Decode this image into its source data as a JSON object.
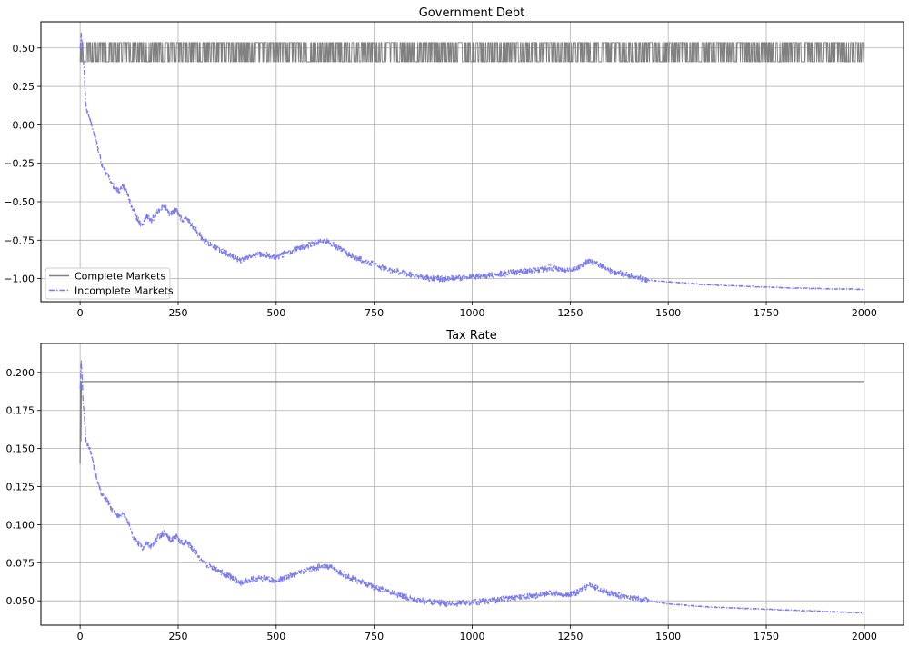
{
  "figure": {
    "panels": [
      {
        "title": "Government Debt"
      },
      {
        "title": "Tax Rate"
      }
    ]
  },
  "chart_data": [
    {
      "type": "line",
      "title": "Government Debt",
      "xlabel": "",
      "ylabel": "",
      "xlim": [
        -100,
        2100
      ],
      "ylim": [
        -1.15,
        0.67
      ],
      "xticks": [
        0,
        250,
        500,
        750,
        1000,
        1250,
        1500,
        1750,
        2000
      ],
      "yticks": [
        -1.0,
        -0.75,
        -0.5,
        -0.25,
        0.0,
        0.25,
        0.5
      ],
      "ytick_labels": [
        "−1.00",
        "−0.75",
        "−0.50",
        "−0.25",
        "0.00",
        "0.25",
        "0.50"
      ],
      "grid": true,
      "legend": "lower-left",
      "series": [
        {
          "name": "Complete Markets",
          "color": "#808080",
          "style": "solid",
          "pattern": "switching",
          "x_range": [
            0,
            2000
          ],
          "levels": [
            0.41,
            0.535
          ],
          "x": [
            0,
            1,
            2,
            3
          ],
          "y": [
            0.41,
            0.535,
            0.44,
            0.5
          ]
        },
        {
          "name": "Incomplete Markets",
          "color": "#7b7bf0",
          "style": "dashdot",
          "x": [
            0,
            3,
            8,
            15,
            25,
            35,
            45,
            55,
            65,
            75,
            90,
            100,
            110,
            125,
            130,
            140,
            150,
            160,
            170,
            180,
            190,
            200,
            215,
            230,
            245,
            260,
            270,
            285,
            300,
            320,
            350,
            380,
            410,
            440,
            470,
            500,
            530,
            560,
            590,
            620,
            640,
            660,
            690,
            720,
            760,
            800,
            850,
            900,
            950,
            1000,
            1050,
            1100,
            1150,
            1200,
            1250,
            1270,
            1300,
            1350,
            1400,
            1450,
            1500,
            1600,
            1700,
            1800,
            1900,
            2000
          ],
          "y": [
            0.5,
            0.58,
            0.45,
            0.12,
            0.03,
            -0.05,
            -0.15,
            -0.25,
            -0.3,
            -0.35,
            -0.42,
            -0.43,
            -0.4,
            -0.48,
            -0.52,
            -0.58,
            -0.63,
            -0.65,
            -0.6,
            -0.62,
            -0.6,
            -0.55,
            -0.53,
            -0.58,
            -0.55,
            -0.62,
            -0.6,
            -0.65,
            -0.7,
            -0.76,
            -0.8,
            -0.85,
            -0.88,
            -0.85,
            -0.84,
            -0.86,
            -0.83,
            -0.8,
            -0.78,
            -0.75,
            -0.77,
            -0.8,
            -0.85,
            -0.88,
            -0.92,
            -0.95,
            -0.98,
            -1.0,
            -1.0,
            -0.99,
            -0.98,
            -0.96,
            -0.95,
            -0.93,
            -0.95,
            -0.93,
            -0.88,
            -0.95,
            -0.98,
            -1.01,
            -1.02,
            -1.04,
            -1.05,
            -1.06,
            -1.065,
            -1.07
          ]
        }
      ]
    },
    {
      "type": "line",
      "title": "Tax Rate",
      "xlabel": "",
      "ylabel": "",
      "xlim": [
        -100,
        2100
      ],
      "ylim": [
        0.034,
        0.219
      ],
      "xticks": [
        0,
        250,
        500,
        750,
        1000,
        1250,
        1500,
        1750,
        2000
      ],
      "yticks": [
        0.05,
        0.075,
        0.1,
        0.125,
        0.15,
        0.175,
        0.2
      ],
      "ytick_labels": [
        "0.050",
        "0.075",
        "0.100",
        "0.125",
        "0.150",
        "0.175",
        "0.200"
      ],
      "grid": true,
      "legend": "none",
      "series": [
        {
          "name": "Complete Markets",
          "color": "#808080",
          "style": "solid",
          "x": [
            0,
            1,
            2,
            3,
            4,
            2000
          ],
          "y": [
            0.14,
            0.194,
            0.155,
            0.194,
            0.194,
            0.194
          ]
        },
        {
          "name": "Incomplete Markets",
          "color": "#7b7bf0",
          "style": "dashdot",
          "x": [
            0,
            3,
            8,
            15,
            25,
            35,
            45,
            55,
            65,
            75,
            90,
            100,
            110,
            125,
            130,
            140,
            150,
            160,
            170,
            180,
            190,
            200,
            215,
            230,
            245,
            260,
            270,
            285,
            300,
            320,
            350,
            380,
            410,
            440,
            470,
            500,
            530,
            560,
            590,
            620,
            640,
            660,
            690,
            720,
            760,
            800,
            850,
            900,
            950,
            1000,
            1050,
            1100,
            1150,
            1200,
            1250,
            1270,
            1300,
            1350,
            1400,
            1450,
            1500,
            1600,
            1700,
            1800,
            1900,
            2000
          ],
          "y": [
            0.19,
            0.208,
            0.18,
            0.155,
            0.15,
            0.138,
            0.128,
            0.12,
            0.117,
            0.113,
            0.107,
            0.106,
            0.108,
            0.1,
            0.095,
            0.09,
            0.087,
            0.085,
            0.088,
            0.086,
            0.088,
            0.092,
            0.095,
            0.09,
            0.092,
            0.088,
            0.089,
            0.085,
            0.08,
            0.074,
            0.07,
            0.066,
            0.062,
            0.064,
            0.065,
            0.063,
            0.066,
            0.069,
            0.071,
            0.073,
            0.072,
            0.069,
            0.065,
            0.062,
            0.058,
            0.055,
            0.051,
            0.049,
            0.048,
            0.049,
            0.05,
            0.052,
            0.053,
            0.055,
            0.054,
            0.056,
            0.06,
            0.055,
            0.052,
            0.05,
            0.048,
            0.046,
            0.045,
            0.044,
            0.043,
            0.042
          ]
        }
      ]
    }
  ]
}
